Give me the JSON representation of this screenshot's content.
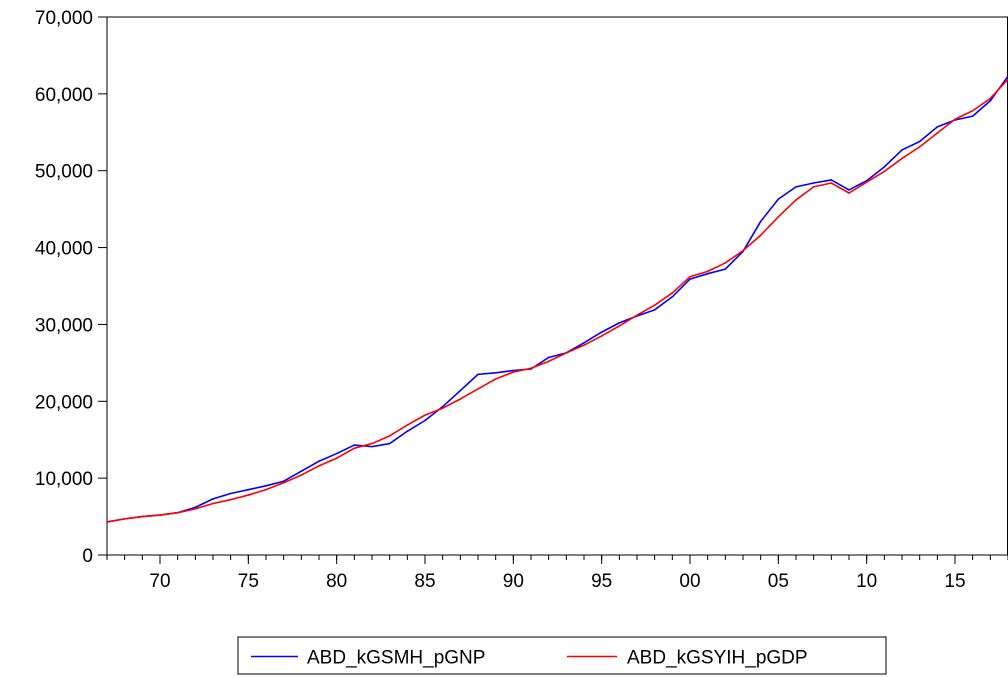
{
  "chart_data": {
    "type": "line",
    "title": "",
    "xlabel": "",
    "ylabel": "",
    "x_start_year": 1967,
    "x_end_year": 2018,
    "x": [
      1967,
      1968,
      1969,
      1970,
      1971,
      1972,
      1973,
      1974,
      1975,
      1976,
      1977,
      1978,
      1979,
      1980,
      1981,
      1982,
      1983,
      1984,
      1985,
      1986,
      1987,
      1988,
      1989,
      1990,
      1991,
      1992,
      1993,
      1994,
      1995,
      1996,
      1997,
      1998,
      1999,
      2000,
      2001,
      2002,
      2003,
      2004,
      2005,
      2006,
      2007,
      2008,
      2009,
      2010,
      2011,
      2012,
      2013,
      2014,
      2015,
      2016,
      2017,
      2018
    ],
    "x_tick_values": [
      1970,
      1975,
      1980,
      1985,
      1990,
      1995,
      2000,
      2005,
      2010,
      2015
    ],
    "x_tick_labels": [
      "70",
      "75",
      "80",
      "85",
      "90",
      "95",
      "00",
      "05",
      "10",
      "15"
    ],
    "ylim": [
      0,
      70000
    ],
    "y_tick_values": [
      0,
      10000,
      20000,
      30000,
      40000,
      50000,
      60000,
      70000
    ],
    "y_tick_labels": [
      "0",
      "10,000",
      "20,000",
      "30,000",
      "40,000",
      "50,000",
      "60,000",
      "70,000"
    ],
    "grid": false,
    "legend_position": "bottom-center",
    "series": [
      {
        "name": "ABD_kGSMH_pGNP",
        "color": "#0000ff",
        "values": [
          4300,
          4700,
          5000,
          5200,
          5500,
          6200,
          7300,
          8000,
          8500,
          9000,
          9600,
          10900,
          12200,
          13200,
          14300,
          14100,
          14500,
          16100,
          17500,
          19300,
          21400,
          23500,
          23700,
          24000,
          24200,
          25700,
          26300,
          27600,
          29000,
          30200,
          31100,
          31900,
          33600,
          35900,
          36600,
          37200,
          39500,
          43400,
          46300,
          47900,
          48400,
          48800,
          47500,
          48700,
          50500,
          52700,
          53800,
          55700,
          56600,
          57100,
          59100,
          62300
        ]
      },
      {
        "name": "ABD_kGSYIH_pGDP",
        "color": "#ff0000",
        "values": [
          4300,
          4700,
          5000,
          5200,
          5500,
          6000,
          6700,
          7200,
          7800,
          8500,
          9400,
          10400,
          11600,
          12600,
          13900,
          14500,
          15500,
          16900,
          18200,
          19100,
          20300,
          21600,
          22900,
          23800,
          24300,
          25200,
          26300,
          27300,
          28500,
          29800,
          31200,
          32500,
          34100,
          36200,
          36900,
          38000,
          39600,
          41600,
          44000,
          46200,
          47900,
          48400,
          47100,
          48500,
          49900,
          51600,
          53100,
          54900,
          56700,
          57800,
          59400,
          61900
        ]
      }
    ]
  }
}
